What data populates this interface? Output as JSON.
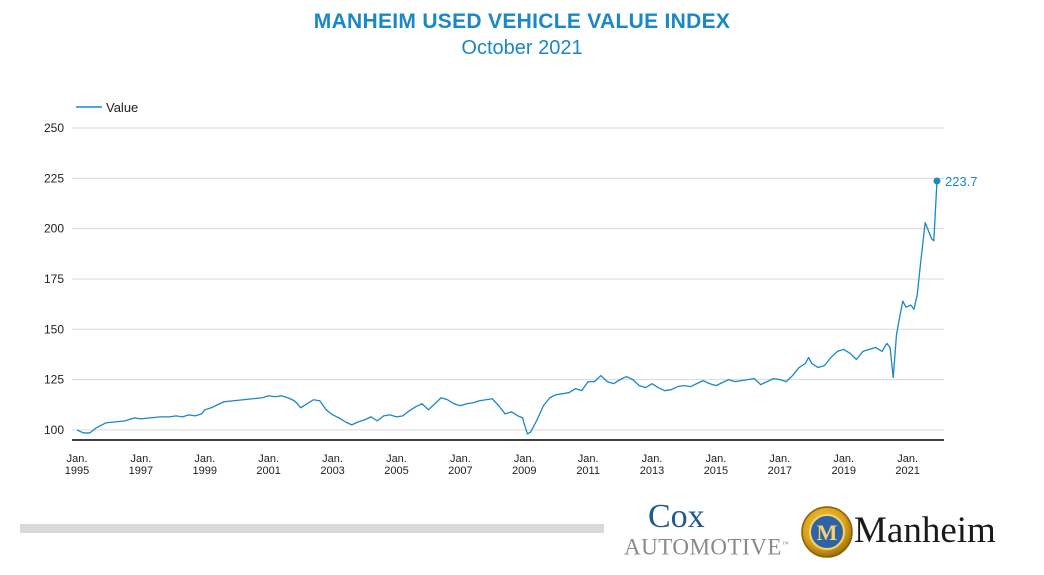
{
  "colors": {
    "accent": "#1a87c8",
    "grid": "#d9d9d9",
    "axis": "#000000",
    "text": "#222222"
  },
  "header": {
    "title": "MANHEIM USED VEHICLE VALUE INDEX",
    "subtitle": "October 2021"
  },
  "logos": {
    "cox": {
      "line1": "Cox",
      "line2": "AUTOMOTIVE",
      "tm": "™"
    },
    "manheim": {
      "word": "Manheim",
      "emblem_letter": "M"
    }
  },
  "chart_data": {
    "type": "line",
    "title": "MANHEIM USED VEHICLE VALUE INDEX",
    "subtitle": "October 2021",
    "legend": {
      "label": "Value",
      "position": "top-left"
    },
    "grid": true,
    "yticks": [
      100,
      125,
      150,
      175,
      200,
      225,
      250
    ],
    "ylim": [
      95,
      250
    ],
    "xlim": [
      1995.0,
      2021.92
    ],
    "xtick_labels": [
      {
        "year": 1995,
        "line1": "Jan.",
        "line2": "1995"
      },
      {
        "year": 1997,
        "line1": "Jan.",
        "line2": "1997"
      },
      {
        "year": 1999,
        "line1": "Jan.",
        "line2": "1999"
      },
      {
        "year": 2001,
        "line1": "Jan.",
        "line2": "2001"
      },
      {
        "year": 2003,
        "line1": "Jan.",
        "line2": "2003"
      },
      {
        "year": 2005,
        "line1": "Jan.",
        "line2": "2005"
      },
      {
        "year": 2007,
        "line1": "Jan.",
        "line2": "2007"
      },
      {
        "year": 2009,
        "line1": "Jan.",
        "line2": "2009"
      },
      {
        "year": 2011,
        "line1": "Jan.",
        "line2": "2011"
      },
      {
        "year": 2013,
        "line1": "Jan.",
        "line2": "2013"
      },
      {
        "year": 2015,
        "line1": "Jan.",
        "line2": "2015"
      },
      {
        "year": 2017,
        "line1": "Jan.",
        "line2": "2017"
      },
      {
        "year": 2019,
        "line1": "Jan.",
        "line2": "2019"
      },
      {
        "year": 2021,
        "line1": "Jan.",
        "line2": "2021"
      }
    ],
    "series": [
      {
        "name": "Value",
        "points": [
          [
            1995.0,
            100
          ],
          [
            1995.2,
            98.5
          ],
          [
            1995.4,
            98.5
          ],
          [
            1995.6,
            101
          ],
          [
            1995.9,
            103.5
          ],
          [
            1996.2,
            104
          ],
          [
            1996.5,
            104.5
          ],
          [
            1996.8,
            106
          ],
          [
            1997.0,
            105.5
          ],
          [
            1997.3,
            106
          ],
          [
            1997.6,
            106.5
          ],
          [
            1997.9,
            106.5
          ],
          [
            1998.1,
            107
          ],
          [
            1998.3,
            106.5
          ],
          [
            1998.5,
            107.5
          ],
          [
            1998.7,
            107
          ],
          [
            1998.9,
            108
          ],
          [
            1999.0,
            110
          ],
          [
            1999.2,
            111
          ],
          [
            1999.4,
            112.5
          ],
          [
            1999.6,
            114
          ],
          [
            1999.9,
            114.5
          ],
          [
            2000.2,
            115
          ],
          [
            2000.5,
            115.5
          ],
          [
            2000.8,
            116
          ],
          [
            2001.0,
            117
          ],
          [
            2001.2,
            116.5
          ],
          [
            2001.4,
            117
          ],
          [
            2001.6,
            116
          ],
          [
            2001.8,
            114.5
          ],
          [
            2001.9,
            113
          ],
          [
            2002.0,
            111
          ],
          [
            2002.2,
            113
          ],
          [
            2002.4,
            115
          ],
          [
            2002.6,
            114.5
          ],
          [
            2002.8,
            110
          ],
          [
            2003.0,
            107.5
          ],
          [
            2003.2,
            106
          ],
          [
            2003.4,
            104
          ],
          [
            2003.6,
            102.5
          ],
          [
            2003.8,
            104
          ],
          [
            2004.0,
            105
          ],
          [
            2004.2,
            106.5
          ],
          [
            2004.4,
            104.5
          ],
          [
            2004.6,
            107
          ],
          [
            2004.8,
            107.5
          ],
          [
            2005.0,
            106.5
          ],
          [
            2005.2,
            107
          ],
          [
            2005.4,
            109.5
          ],
          [
            2005.6,
            111.5
          ],
          [
            2005.8,
            113
          ],
          [
            2006.0,
            110
          ],
          [
            2006.2,
            113
          ],
          [
            2006.4,
            116
          ],
          [
            2006.6,
            115
          ],
          [
            2006.8,
            113
          ],
          [
            2007.0,
            112
          ],
          [
            2007.2,
            113
          ],
          [
            2007.4,
            113.5
          ],
          [
            2007.6,
            114.5
          ],
          [
            2007.8,
            115
          ],
          [
            2008.0,
            115.5
          ],
          [
            2008.2,
            112
          ],
          [
            2008.4,
            108
          ],
          [
            2008.6,
            109
          ],
          [
            2008.8,
            107
          ],
          [
            2008.95,
            106
          ],
          [
            2009.0,
            103
          ],
          [
            2009.1,
            98
          ],
          [
            2009.2,
            99
          ],
          [
            2009.4,
            105
          ],
          [
            2009.6,
            112
          ],
          [
            2009.8,
            116
          ],
          [
            2010.0,
            117.5
          ],
          [
            2010.2,
            118
          ],
          [
            2010.4,
            118.5
          ],
          [
            2010.6,
            120.5
          ],
          [
            2010.8,
            119.5
          ],
          [
            2011.0,
            124
          ],
          [
            2011.2,
            124
          ],
          [
            2011.4,
            127
          ],
          [
            2011.6,
            124
          ],
          [
            2011.8,
            123
          ],
          [
            2012.0,
            125
          ],
          [
            2012.2,
            126.5
          ],
          [
            2012.4,
            125
          ],
          [
            2012.6,
            122
          ],
          [
            2012.8,
            121
          ],
          [
            2013.0,
            123
          ],
          [
            2013.2,
            121
          ],
          [
            2013.4,
            119.5
          ],
          [
            2013.6,
            120
          ],
          [
            2013.8,
            121.5
          ],
          [
            2014.0,
            122
          ],
          [
            2014.2,
            121.5
          ],
          [
            2014.4,
            123
          ],
          [
            2014.6,
            124.5
          ],
          [
            2014.8,
            123
          ],
          [
            2015.0,
            122
          ],
          [
            2015.2,
            123.5
          ],
          [
            2015.4,
            125
          ],
          [
            2015.6,
            124
          ],
          [
            2015.8,
            124.5
          ],
          [
            2016.0,
            125
          ],
          [
            2016.2,
            125.5
          ],
          [
            2016.4,
            122.5
          ],
          [
            2016.6,
            124
          ],
          [
            2016.8,
            125.5
          ],
          [
            2017.0,
            125
          ],
          [
            2017.2,
            124
          ],
          [
            2017.4,
            127
          ],
          [
            2017.6,
            131
          ],
          [
            2017.8,
            133
          ],
          [
            2017.9,
            136
          ],
          [
            2018.0,
            133
          ],
          [
            2018.2,
            131
          ],
          [
            2018.4,
            132
          ],
          [
            2018.6,
            136
          ],
          [
            2018.8,
            139
          ],
          [
            2019.0,
            140
          ],
          [
            2019.2,
            138
          ],
          [
            2019.4,
            135
          ],
          [
            2019.6,
            139
          ],
          [
            2019.8,
            140
          ],
          [
            2020.0,
            141
          ],
          [
            2020.2,
            139
          ],
          [
            2020.35,
            143
          ],
          [
            2020.45,
            141
          ],
          [
            2020.55,
            126
          ],
          [
            2020.65,
            147
          ],
          [
            2020.75,
            156
          ],
          [
            2020.85,
            164
          ],
          [
            2020.95,
            161
          ],
          [
            2021.1,
            162
          ],
          [
            2021.2,
            160
          ],
          [
            2021.3,
            167
          ],
          [
            2021.4,
            182
          ],
          [
            2021.55,
            203
          ],
          [
            2021.65,
            199
          ],
          [
            2021.75,
            195
          ],
          [
            2021.82,
            194
          ],
          [
            2021.92,
            223.7
          ]
        ],
        "last_label": "223.7"
      }
    ]
  }
}
